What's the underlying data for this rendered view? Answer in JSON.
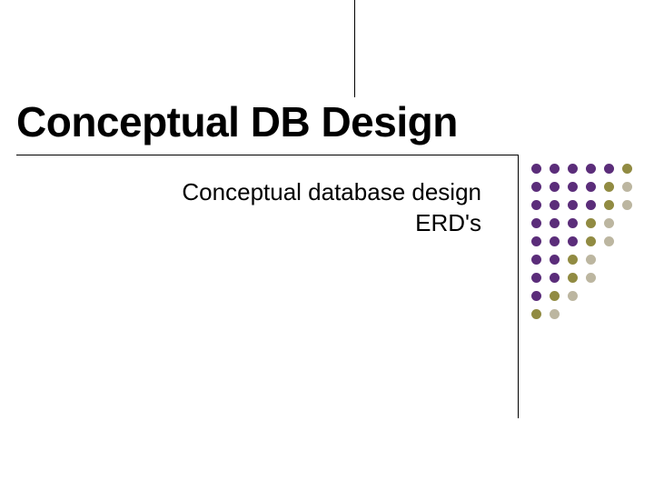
{
  "slide": {
    "title": "Conceptual DB Design",
    "subtitle_line1": "Conceptual database design",
    "subtitle_line2": "ERD's",
    "title_fontsize": 46,
    "subtitle_fontsize": 26,
    "title_color": "#000000",
    "subtitle_color": "#000000",
    "background_color": "#ffffff",
    "line_color": "#000000"
  },
  "dot_grid": {
    "rows": 9,
    "cols": 6,
    "dot_size": 11,
    "gap": 9,
    "colors": [
      [
        "#5b2d7a",
        "#5b2d7a",
        "#5b2d7a",
        "#5b2d7a",
        "#5b2d7a",
        "#918b42"
      ],
      [
        "#5b2d7a",
        "#5b2d7a",
        "#5b2d7a",
        "#5b2d7a",
        "#918b42",
        "#bcb6a0"
      ],
      [
        "#5b2d7a",
        "#5b2d7a",
        "#5b2d7a",
        "#5b2d7a",
        "#918b42",
        "#bcb6a0"
      ],
      [
        "#5b2d7a",
        "#5b2d7a",
        "#5b2d7a",
        "#918b42",
        "#bcb6a0",
        null
      ],
      [
        "#5b2d7a",
        "#5b2d7a",
        "#5b2d7a",
        "#918b42",
        "#bcb6a0",
        null
      ],
      [
        "#5b2d7a",
        "#5b2d7a",
        "#918b42",
        "#bcb6a0",
        null,
        null
      ],
      [
        "#5b2d7a",
        "#5b2d7a",
        "#918b42",
        "#bcb6a0",
        null,
        null
      ],
      [
        "#5b2d7a",
        "#918b42",
        "#bcb6a0",
        null,
        null,
        null
      ],
      [
        "#918b42",
        "#bcb6a0",
        null,
        null,
        null,
        null
      ]
    ]
  }
}
